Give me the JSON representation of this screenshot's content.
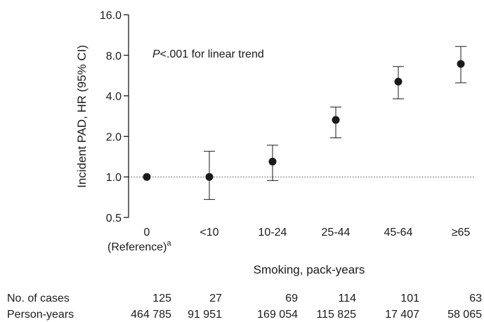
{
  "chart_data": {
    "type": "scatter",
    "title": "",
    "xlabel": "Smoking, pack-years",
    "ylabel": "Incident PAD, HR (95% CI)",
    "yscale": "log",
    "ylim": [
      0.5,
      16.0
    ],
    "yticks": [
      "0.5",
      "1.0",
      "2.0",
      "4.0",
      "8.0",
      "16.0"
    ],
    "categories": [
      "0",
      "<10",
      "10-24",
      "25-44",
      "45-64",
      "≥65"
    ],
    "reference_sublabel": "(Reference)",
    "reference_footnote": "a",
    "annotation_italic": "P",
    "annotation_rest": "<.001 for linear trend",
    "reference_line": 1.0,
    "grid": false,
    "series": [
      {
        "values": [
          1.0,
          1.0,
          1.3,
          2.65,
          5.1,
          6.9
        ],
        "ci_low": [
          null,
          0.68,
          0.94,
          1.95,
          3.8,
          5.0
        ],
        "ci_high": [
          null,
          1.55,
          1.72,
          3.3,
          6.6,
          9.3
        ]
      }
    ],
    "marker_color": "#1a1a1a"
  },
  "table": {
    "rows": [
      {
        "label": "No. of cases",
        "values": [
          "125",
          "27",
          "69",
          "114",
          "101",
          "63"
        ]
      },
      {
        "label": "Person-years",
        "values": [
          "464 785",
          "91 951",
          "169 054",
          "115 825",
          "17 407",
          "58 065"
        ]
      }
    ]
  }
}
